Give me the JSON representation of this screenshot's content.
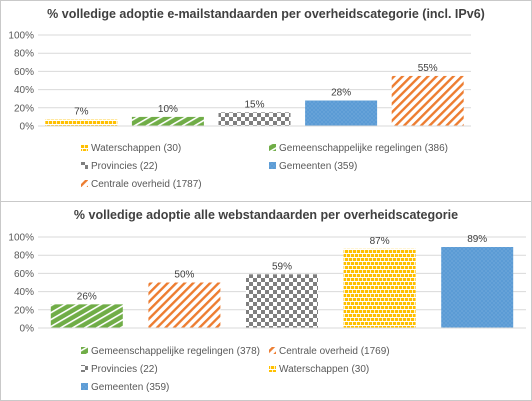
{
  "chart_data": [
    {
      "type": "bar",
      "title": "% volledige adoptie e-mailstandaarden per overheidscategorie (incl. IPv6)",
      "ylim": [
        0,
        100
      ],
      "yticks": [
        "0%",
        "20%",
        "40%",
        "60%",
        "80%",
        "100%"
      ],
      "grid": true,
      "legend_position": "bottom",
      "categories": [
        "Waterschappen (30)",
        "Gemeenschappelijke regelingen (386)",
        "Provincies (22)",
        "Gemeenten (359)",
        "Centrale overheid (1787)"
      ],
      "values": [
        7,
        10,
        15,
        28,
        55
      ],
      "data_labels": [
        "7%",
        "10%",
        "15%",
        "28%",
        "55%"
      ],
      "patterns": [
        "yellow-bricks",
        "green-stripes",
        "gray-checker",
        "blue-dots",
        "orange-diagonal"
      ],
      "legend": [
        {
          "label": "Waterschappen (30)",
          "pattern": "yellow-bricks"
        },
        {
          "label": "Gemeenschappelijke regelingen (386)",
          "pattern": "green-stripes"
        },
        {
          "label": "Provincies (22)",
          "pattern": "gray-checker"
        },
        {
          "label": "Gemeenten (359)",
          "pattern": "blue-dots"
        },
        {
          "label": "Centrale overheid (1787)",
          "pattern": "orange-diagonal"
        }
      ]
    },
    {
      "type": "bar",
      "title": "% volledige adoptie alle webstandaarden per overheidscategorie",
      "ylim": [
        0,
        100
      ],
      "yticks": [
        "0%",
        "20%",
        "40%",
        "60%",
        "80%",
        "100%"
      ],
      "grid": true,
      "legend_position": "bottom",
      "categories": [
        "Gemeenschappelijke regelingen (378)",
        "Centrale overheid (1769)",
        "Provincies (22)",
        "Waterschappen (30)",
        "Gemeenten (359)"
      ],
      "values": [
        26,
        50,
        59,
        87,
        89
      ],
      "data_labels": [
        "26%",
        "50%",
        "59%",
        "87%",
        "89%"
      ],
      "patterns": [
        "green-stripes",
        "orange-diagonal",
        "gray-checker",
        "yellow-bricks",
        "blue-dots"
      ],
      "legend": [
        {
          "label": "Gemeenschappelijke regelingen (378)",
          "pattern": "green-stripes"
        },
        {
          "label": "Centrale overheid (1769)",
          "pattern": "orange-diagonal"
        },
        {
          "label": "Provincies (22)",
          "pattern": "gray-checker"
        },
        {
          "label": "Waterschappen (30)",
          "pattern": "yellow-bricks"
        },
        {
          "label": "Gemeenten (359)",
          "pattern": "blue-dots"
        }
      ]
    }
  ],
  "colors": {
    "yellow": "#ffc000",
    "green": "#70ad47",
    "gray": "#7f7f7f",
    "blue": "#5b9bd5",
    "orange": "#ed7d31",
    "grid": "#d9d9d9",
    "text": "#595959"
  }
}
